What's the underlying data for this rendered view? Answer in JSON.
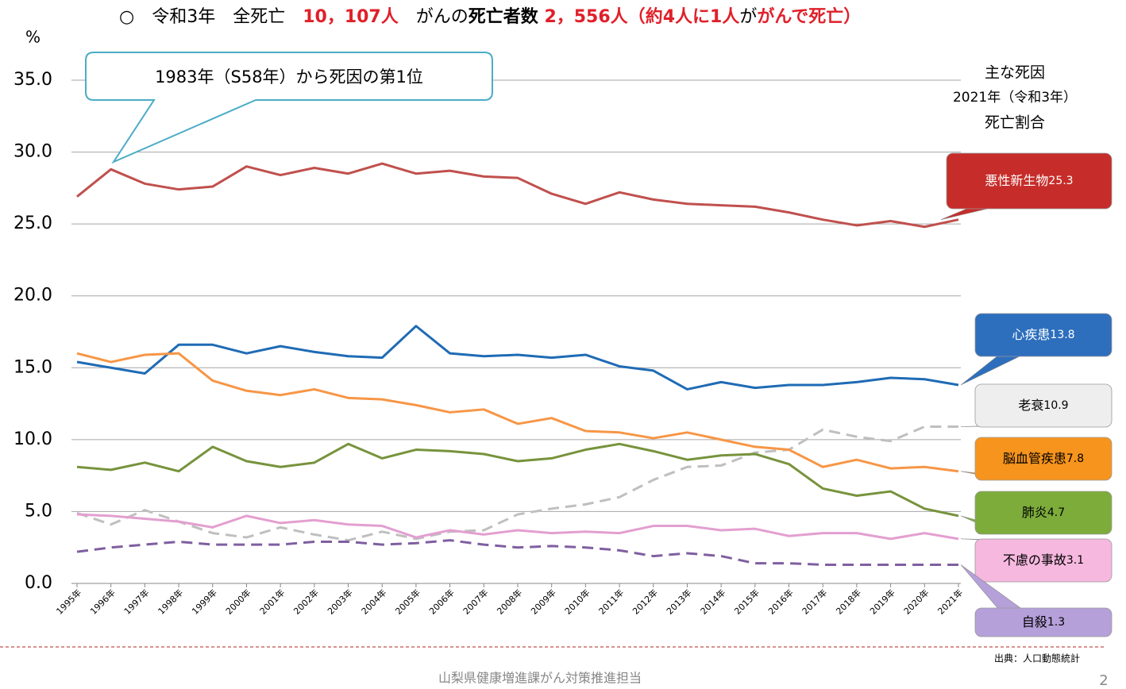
{
  "title_parts": [
    "○　令和3年　全死亡　",
    "10，107人",
    "　がんの",
    "死亡者数",
    " 2，556人",
    "（",
    "約4人に1人",
    "が",
    "がんで死亡",
    "）"
  ],
  "chart_data": {
    "type": "line",
    "y_unit": "%",
    "annotation": "1983年（S58年）から死因の第1位",
    "legend_title": [
      "主な死因",
      "2021年（令和3年）",
      "死亡割合"
    ],
    "source": "出典：人口動態統計",
    "categories": [
      "1995年",
      "1996年",
      "1997年",
      "1998年",
      "1999年",
      "2000年",
      "2001年",
      "2002年",
      "2003年",
      "2004年",
      "2005年",
      "2006年",
      "2007年",
      "2008年",
      "2009年",
      "2010年",
      "2011年",
      "2012年",
      "2013年",
      "2014年",
      "2015年",
      "2016年",
      "2017年",
      "2018年",
      "2019年",
      "2020年",
      "2021年"
    ],
    "ylim": [
      0,
      35
    ],
    "yticks": [
      {
        "value": 0,
        "label": "0.0"
      },
      {
        "value": 5,
        "label": "5.0"
      },
      {
        "value": 10,
        "label": "10.0"
      },
      {
        "value": 15,
        "label": "15.0"
      },
      {
        "value": 20,
        "label": "20.0"
      },
      {
        "value": 25,
        "label": "25.0"
      },
      {
        "value": 30,
        "label": "30.0"
      },
      {
        "value": 35,
        "label": "35.0"
      }
    ],
    "grid": true,
    "series": [
      {
        "name": "悪性新生物",
        "color": "#c0504d",
        "dashed": false,
        "values": [
          26.9,
          28.8,
          27.8,
          27.4,
          27.6,
          29.0,
          28.4,
          28.9,
          28.5,
          29.2,
          28.5,
          28.7,
          28.3,
          28.2,
          27.1,
          26.4,
          27.2,
          26.7,
          26.4,
          26.3,
          26.2,
          25.8,
          25.3,
          24.9,
          25.2,
          24.8,
          25.3
        ]
      },
      {
        "name": "心疾患",
        "color": "#1f6bb5",
        "dashed": false,
        "values": [
          15.4,
          15.0,
          14.6,
          16.6,
          16.6,
          16.0,
          16.5,
          16.1,
          15.8,
          15.7,
          17.9,
          16.0,
          15.8,
          15.9,
          15.7,
          15.9,
          15.1,
          14.8,
          13.5,
          14.0,
          13.6,
          13.8,
          13.8,
          14.0,
          14.3,
          14.2,
          13.8
        ]
      },
      {
        "name": "老衰",
        "color": "#bfbfbf",
        "dashed": true,
        "values": [
          4.9,
          4.1,
          5.1,
          4.3,
          3.5,
          3.2,
          3.9,
          3.4,
          3.0,
          3.6,
          3.1,
          3.6,
          3.7,
          4.8,
          5.2,
          5.5,
          6.0,
          7.2,
          8.1,
          8.2,
          9.1,
          9.3,
          10.7,
          10.2,
          9.9,
          10.9,
          10.9
        ]
      },
      {
        "name": "脳血管疾患",
        "color": "#f79646",
        "dashed": false,
        "values": [
          16.0,
          15.4,
          15.9,
          16.0,
          14.1,
          13.4,
          13.1,
          13.5,
          12.9,
          12.8,
          12.4,
          11.9,
          12.1,
          11.1,
          11.5,
          10.6,
          10.5,
          10.1,
          10.5,
          10.0,
          9.5,
          9.3,
          8.1,
          8.6,
          8.0,
          8.1,
          7.8
        ]
      },
      {
        "name": "肺炎",
        "color": "#77933c",
        "dashed": false,
        "values": [
          8.1,
          7.9,
          8.4,
          7.8,
          9.5,
          8.5,
          8.1,
          8.4,
          9.7,
          8.7,
          9.3,
          9.2,
          9.0,
          8.5,
          8.7,
          9.3,
          9.7,
          9.2,
          8.6,
          8.9,
          9.0,
          8.3,
          6.6,
          6.1,
          6.4,
          5.2,
          4.7
        ]
      },
      {
        "name": "不慮の事故",
        "color": "#e39fd0",
        "dashed": false,
        "values": [
          4.8,
          4.7,
          4.5,
          4.3,
          3.9,
          4.7,
          4.2,
          4.4,
          4.1,
          4.0,
          3.2,
          3.7,
          3.4,
          3.7,
          3.5,
          3.6,
          3.5,
          4.0,
          4.0,
          3.7,
          3.8,
          3.3,
          3.5,
          3.5,
          3.1,
          3.5,
          3.1
        ]
      },
      {
        "name": "自殺",
        "color": "#7f5fa0",
        "dashed": true,
        "values": [
          2.2,
          2.5,
          2.7,
          2.9,
          2.7,
          2.7,
          2.7,
          2.9,
          2.9,
          2.7,
          2.8,
          3.0,
          2.7,
          2.5,
          2.6,
          2.5,
          2.3,
          1.9,
          2.1,
          1.9,
          1.4,
          1.4,
          1.3,
          1.3,
          1.3,
          1.3,
          1.3
        ]
      }
    ]
  },
  "footer": "山梨県健康増進課がん対策推進担当",
  "page_number": "2"
}
